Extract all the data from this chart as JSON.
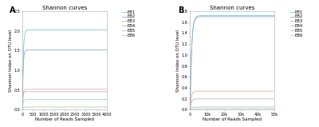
{
  "title": "Shannon curves",
  "xlabel": "Number of Reads Sampled",
  "ylabel": "Shannon Index on OTU level",
  "panel_A": {
    "label": "A",
    "xmax": 4000,
    "ylim": [
      0,
      2.5
    ],
    "yticks": [
      0.0,
      0.5,
      1.0,
      1.5,
      2.0,
      2.5
    ],
    "xticks": [
      0,
      500,
      1000,
      1500,
      2000,
      2500,
      3000,
      3500,
      4000
    ],
    "curves": [
      {
        "name": "EB1",
        "plateau": 2.03,
        "rise_speed": 0.025,
        "color": "#7cc8cc"
      },
      {
        "name": "EB2",
        "plateau": 1.52,
        "rise_speed": 0.03,
        "color": "#8ab0cc"
      },
      {
        "name": "EB3",
        "plateau": 0.52,
        "rise_speed": 0.035,
        "color": "#e8b0a0"
      },
      {
        "name": "EB4",
        "plateau": 0.46,
        "rise_speed": 0.04,
        "color": "#c8b0cc"
      },
      {
        "name": "EB5",
        "plateau": 0.26,
        "rise_speed": 0.03,
        "color": "#a0ccc8"
      },
      {
        "name": "EB6",
        "plateau": 0.07,
        "rise_speed": 0.03,
        "color": "#b0d4a8"
      }
    ]
  },
  "panel_B": {
    "label": "B",
    "xmax": 50000,
    "ylim": [
      0,
      1.8
    ],
    "yticks": [
      0.0,
      0.2,
      0.4,
      0.6,
      0.8,
      1.0,
      1.2,
      1.4,
      1.6,
      1.8
    ],
    "xticks": [
      0,
      10000,
      20000,
      30000,
      40000,
      50000
    ],
    "curves": [
      {
        "name": "EB1",
        "plateau": 1.72,
        "rise_speed": 0.0012,
        "color": "#7cc8cc"
      },
      {
        "name": "EB2",
        "plateau": 1.7,
        "rise_speed": 0.0012,
        "color": "#8ab0cc"
      },
      {
        "name": "EB3",
        "plateau": 0.34,
        "rise_speed": 0.0015,
        "color": "#e8b0a0"
      },
      {
        "name": "EB4",
        "plateau": 0.2,
        "rise_speed": 0.0015,
        "color": "#c8b0cc"
      },
      {
        "name": "EB5",
        "plateau": 0.05,
        "rise_speed": 0.002,
        "color": "#a0ccc8"
      },
      {
        "name": "EB6",
        "plateau": 0.02,
        "rise_speed": 0.002,
        "color": "#b0d4a8"
      }
    ]
  },
  "background_color": "#ffffff",
  "line_width": 0.6,
  "font_size": 4.0,
  "title_font_size": 5.0,
  "legend_font_size": 3.8,
  "tick_font_size": 3.5
}
